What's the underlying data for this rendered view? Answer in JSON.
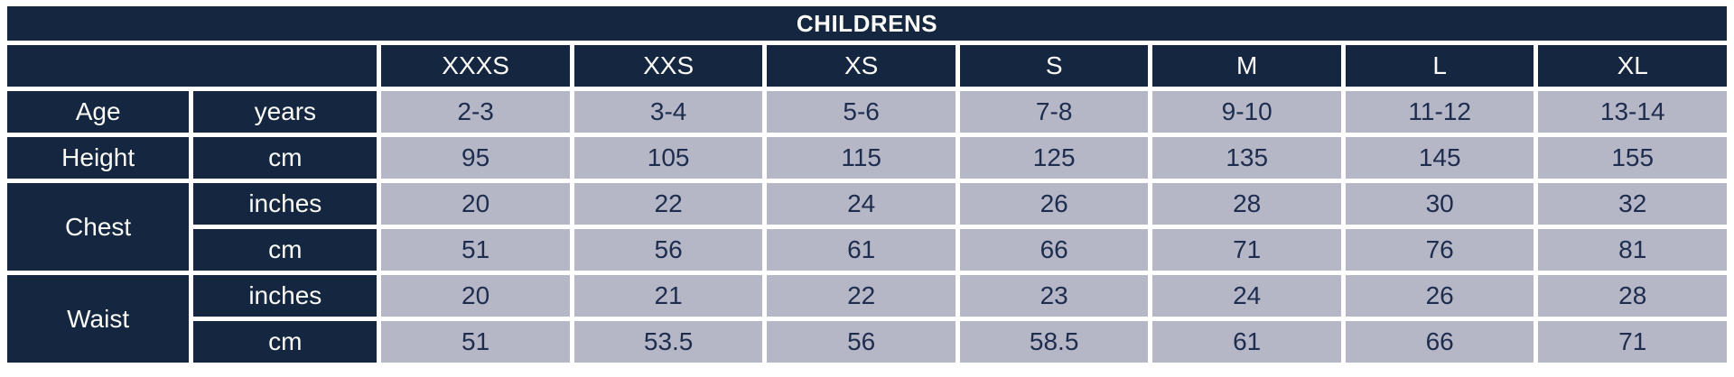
{
  "colors": {
    "navy_header": "#152740",
    "cell_background": "#b5b7c7",
    "cell_text": "#1e2c4e",
    "header_text": "#fafaf6",
    "gridline": "#ffffff"
  },
  "chart_data": {
    "type": "table",
    "title": "CHILDRENS",
    "column_headers": [
      "XXXS",
      "XXS",
      "XS",
      "S",
      "M",
      "L",
      "XL"
    ],
    "row_groups": [
      {
        "label": "Age",
        "rows": [
          {
            "unit": "years",
            "values": [
              "2-3",
              "3-4",
              "5-6",
              "7-8",
              "9-10",
              "11-12",
              "13-14"
            ]
          }
        ]
      },
      {
        "label": "Height",
        "rows": [
          {
            "unit": "cm",
            "values": [
              "95",
              "105",
              "115",
              "125",
              "135",
              "145",
              "155"
            ]
          }
        ]
      },
      {
        "label": "Chest",
        "rows": [
          {
            "unit": "inches",
            "values": [
              "20",
              "22",
              "24",
              "26",
              "28",
              "30",
              "32"
            ]
          },
          {
            "unit": "cm",
            "values": [
              "51",
              "56",
              "61",
              "66",
              "71",
              "76",
              "81"
            ]
          }
        ]
      },
      {
        "label": "Waist",
        "rows": [
          {
            "unit": "inches",
            "values": [
              "20",
              "21",
              "22",
              "23",
              "24",
              "26",
              "28"
            ]
          },
          {
            "unit": "cm",
            "values": [
              "51",
              "53.5",
              "56",
              "58.5",
              "61",
              "66",
              "71"
            ]
          }
        ]
      }
    ]
  }
}
